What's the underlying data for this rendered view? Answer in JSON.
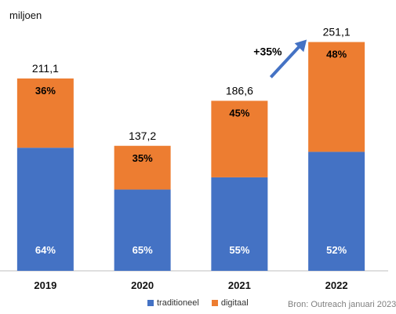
{
  "chart_data": {
    "type": "bar",
    "stacked": true,
    "unit_label": "miljoen",
    "categories": [
      "2019",
      "2020",
      "2021",
      "2022"
    ],
    "totals": [
      211.1,
      137.2,
      186.6,
      251.1
    ],
    "total_labels": [
      "211,1",
      "137,2",
      "186,6",
      "251,1"
    ],
    "series": [
      {
        "name": "traditioneel",
        "color": "#4472c4",
        "values": [
          135.1,
          89.2,
          102.6,
          130.6
        ],
        "labels": [
          "64%",
          "65%",
          "55%",
          "52%"
        ]
      },
      {
        "name": "digitaal",
        "color": "#ed7d31",
        "values": [
          76.0,
          48.0,
          84.0,
          120.5
        ],
        "labels": [
          "36%",
          "35%",
          "45%",
          "48%"
        ]
      }
    ],
    "annotation": {
      "text": "+35%",
      "from": "2021",
      "to": "2022"
    },
    "ylim": [
      0,
      280
    ],
    "legend_position": "bottom"
  },
  "source": "Bron: Outreach januari 2023"
}
